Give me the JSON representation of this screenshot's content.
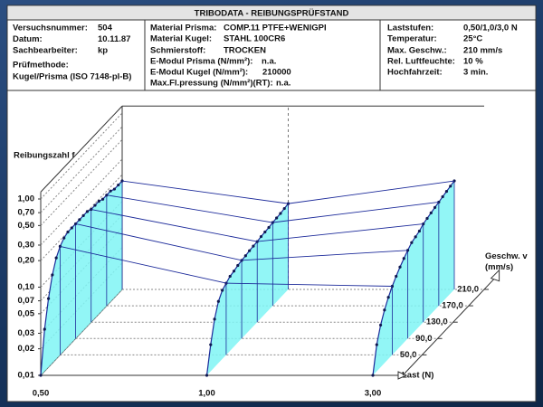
{
  "header": {
    "title": "TRIBODATA - REIBUNGSPRÜFSTAND",
    "col1": [
      [
        "Versuchsnummer:",
        "504"
      ],
      [
        "Datum:",
        "10.11.87"
      ],
      [
        "Sachbearbeiter:",
        "kp"
      ]
    ],
    "method_label": "Prüfmethode:",
    "method": "Kugel/Prisma (ISO 7148-pl-B)",
    "col2": [
      [
        "Material Prisma:",
        "COMP.11 PTFE+WENIGPI"
      ],
      [
        "Material Kugel:",
        "STAHL 100CR6"
      ],
      [
        "Schmierstoff:",
        "TROCKEN"
      ],
      [
        "E-Modul Prisma (N/mm²):",
        "n.a."
      ],
      [
        "E-Modul Kugel (N/mm²):",
        "210000"
      ],
      [
        "Max.Fl.pressung (N/mm²)(RT):",
        "n.a."
      ]
    ],
    "col3": [
      [
        "Laststufen:",
        "0,50/1,0/3,0 N"
      ],
      [
        "Temperatur:",
        "25°C"
      ],
      [
        "Max. Geschw.:",
        "210 mm/s"
      ],
      [
        "Rel. Luftfeuchte:",
        "10 %"
      ],
      [
        "Hochfahrzeit:",
        "3 min."
      ]
    ]
  },
  "chart_data": {
    "type": "line3d",
    "ylabel": "Reibungszahl f",
    "xlabel": "Last (N)",
    "zlabel": "Geschw. v (mm/s)",
    "categories": [
      "0,50",
      "1,00",
      "3,00"
    ],
    "z": [
      0,
      10,
      20,
      30,
      40,
      50,
      60,
      70,
      80,
      90,
      100,
      110,
      120,
      130,
      140,
      150,
      160,
      170,
      180,
      190,
      200,
      210
    ],
    "values": [
      [
        0.01,
        0.03,
        0.06,
        0.1,
        0.14,
        0.17,
        0.19,
        0.2,
        0.2,
        0.2,
        0.2,
        0.2,
        0.2,
        0.19,
        0.19,
        0.19,
        0.18,
        0.18,
        0.18,
        0.17,
        0.17,
        0.17
      ],
      [
        0.01,
        0.02,
        0.035,
        0.05,
        0.06,
        0.065,
        0.07,
        0.072,
        0.075,
        0.077,
        0.078,
        0.08,
        0.081,
        0.082,
        0.084,
        0.085,
        0.086,
        0.088,
        0.089,
        0.09,
        0.092,
        0.094
      ],
      [
        0.01,
        0.02,
        0.03,
        0.04,
        0.05,
        0.06,
        0.07,
        0.08,
        0.09,
        0.1,
        0.11,
        0.115,
        0.12,
        0.13,
        0.135,
        0.14,
        0.145,
        0.15,
        0.155,
        0.16,
        0.165,
        0.17
      ]
    ],
    "ylim": [
      0.01,
      1.2
    ],
    "log_y": true,
    "yticks": [
      {
        "value": 0.01,
        "label": "0,01"
      },
      {
        "value": 0.02,
        "label": "0,02"
      },
      {
        "value": 0.03,
        "label": "0,03"
      },
      {
        "value": 0.05,
        "label": "0,05"
      },
      {
        "value": 0.07,
        "label": "0,07"
      },
      {
        "value": 0.1,
        "label": "0,10"
      },
      {
        "value": 0.2,
        "label": "0,20"
      },
      {
        "value": 0.3,
        "label": "0,30"
      },
      {
        "value": 0.5,
        "label": "0,50"
      },
      {
        "value": 0.7,
        "label": "0,70"
      },
      {
        "value": 1,
        "label": "1,00"
      }
    ],
    "zlim": [
      0,
      210
    ],
    "zticks": [
      {
        "value": 50,
        "label": "50,0"
      },
      {
        "value": 90,
        "label": "90,0"
      },
      {
        "value": 130,
        "label": "130,0"
      },
      {
        "value": 170,
        "label": "170,0"
      },
      {
        "value": 210,
        "label": "210,0"
      }
    ],
    "color": "#1c2a9a",
    "fill": "#7ff4f4",
    "grid": true
  }
}
